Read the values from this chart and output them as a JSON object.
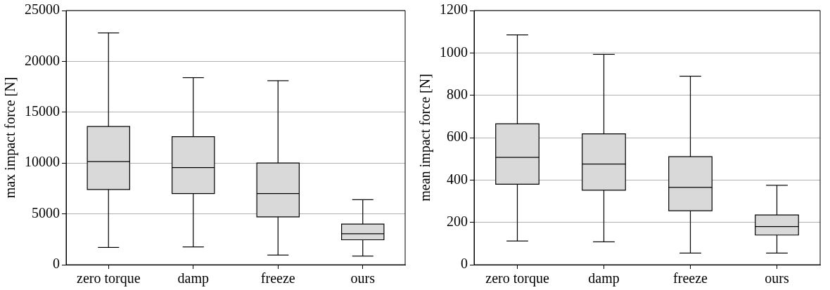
{
  "chart_data": [
    {
      "type": "box",
      "ylabel": "max impact force [N]",
      "categories": [
        "zero torque",
        "damp",
        "freeze",
        "ours"
      ],
      "ylim": [
        0,
        25000
      ],
      "yticks": [
        0,
        5000,
        10000,
        15000,
        20000,
        25000
      ],
      "grid": "y",
      "color": "#d9d9d9",
      "boxes": [
        {
          "low": 1700,
          "q1": 7400,
          "median": 10150,
          "q3": 13600,
          "high": 22800
        },
        {
          "low": 1750,
          "q1": 7000,
          "median": 9550,
          "q3": 12600,
          "high": 18400
        },
        {
          "low": 950,
          "q1": 4700,
          "median": 7000,
          "q3": 10000,
          "high": 18100
        },
        {
          "low": 850,
          "q1": 2450,
          "median": 3050,
          "q3": 4000,
          "high": 6400
        }
      ]
    },
    {
      "type": "box",
      "ylabel": "mean impact force [N]",
      "categories": [
        "zero torque",
        "damp",
        "freeze",
        "ours"
      ],
      "ylim": [
        0,
        1200
      ],
      "yticks": [
        0,
        200,
        400,
        600,
        800,
        1000,
        1200
      ],
      "grid": "y",
      "color": "#d9d9d9",
      "boxes": [
        {
          "low": 112,
          "q1": 380,
          "median": 507,
          "q3": 665,
          "high": 1085
        },
        {
          "low": 108,
          "q1": 352,
          "median": 475,
          "q3": 618,
          "high": 993
        },
        {
          "low": 55,
          "q1": 255,
          "median": 365,
          "q3": 510,
          "high": 890
        },
        {
          "low": 55,
          "q1": 140,
          "median": 180,
          "q3": 235,
          "high": 375
        }
      ]
    }
  ]
}
